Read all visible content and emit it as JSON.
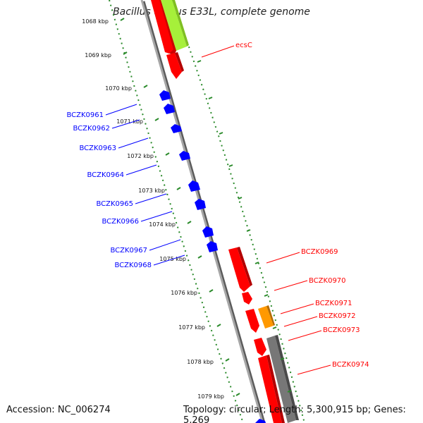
{
  "title": "Bacillus cereus E33L, complete genome",
  "footer": {
    "accession": "Accession: NC_006274",
    "summary": "Topology: circular; Length: 5,300,915 bp; Genes: 5,269"
  },
  "colors": {
    "forward_cds": "#ff0000",
    "reverse_cds": "#0000ff",
    "backbone": "#8c8c8c",
    "tick": "#2a8a2a",
    "accent_green": "#a6f03a",
    "accent_orange": "#ff9900",
    "grey_feature": "#777777"
  },
  "ticks": [
    "1068 kbp",
    "1069 kbp",
    "1070 kbp",
    "1071 kbp",
    "1072 kbp",
    "1073 kbp",
    "1074 kbp",
    "1075 kbp",
    "1076 kbp",
    "1077 kbp",
    "1078 kbp",
    "1079 kbp"
  ],
  "reverse_labels": [
    "BCZK0961",
    "BCZK0962",
    "BCZK0963",
    "BCZK0964",
    "BCZK0965",
    "BCZK0966",
    "BCZK0967",
    "BCZK0968"
  ],
  "forward_labels": [
    "ecsC",
    "BCZK0969",
    "BCZK0970",
    "BCZK0971",
    "BCZK0972",
    "BCZK0973",
    "BCZK0974"
  ]
}
